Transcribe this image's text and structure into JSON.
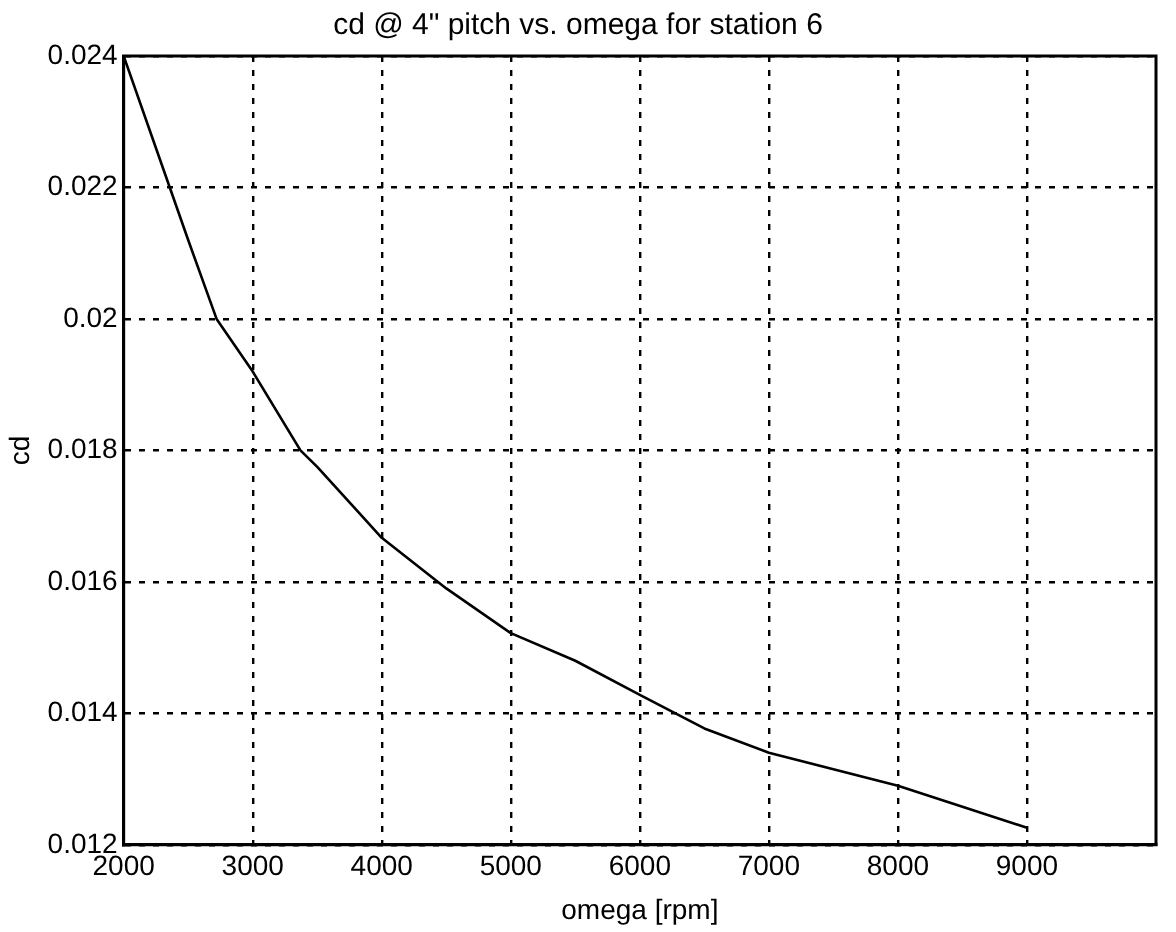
{
  "chart_data": {
    "type": "line",
    "title": "cd @ 4\" pitch vs. omega for station 6",
    "xlabel": "omega [rpm]",
    "ylabel": "cd",
    "x": [
      2000,
      2250,
      2500,
      2720,
      3000,
      3370,
      3500,
      4000,
      4500,
      5000,
      5500,
      6000,
      6500,
      7000,
      7500,
      8000,
      8500,
      9000
    ],
    "series": [
      {
        "color": "#000000",
        "values": [
          0.024,
          0.0226,
          0.0212,
          0.02,
          0.0192,
          0.018,
          0.01775,
          0.01667,
          0.0159,
          0.01522,
          0.0148,
          0.01428,
          0.01377,
          0.0134,
          0.01315,
          0.0129,
          0.01258,
          0.01226
        ]
      }
    ],
    "xlim": [
      2000,
      10000
    ],
    "xticks": [
      2000,
      3000,
      4000,
      5000,
      6000,
      7000,
      8000,
      9000
    ],
    "ylim": [
      0.012,
      0.024
    ],
    "yticks": [
      0.012,
      0.014,
      0.016,
      0.018,
      0.02,
      0.022,
      0.024
    ],
    "grid": true,
    "legend": false,
    "marker": "none",
    "line_style": "solid"
  }
}
